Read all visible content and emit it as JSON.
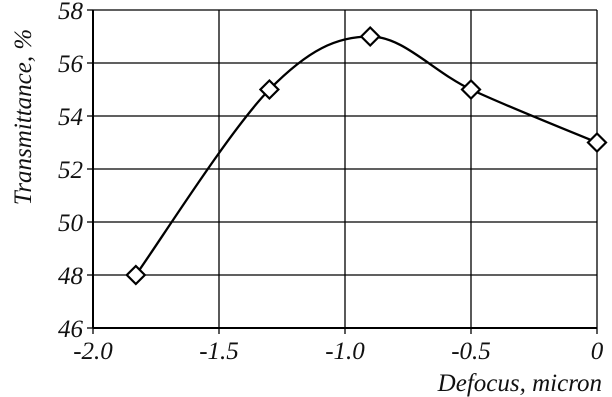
{
  "chart_data": {
    "type": "line",
    "title": "",
    "xlabel": "Defocus, micron",
    "ylabel": "Transmittance, %",
    "xlim": [
      -2.0,
      0
    ],
    "ylim": [
      46,
      58
    ],
    "x_ticks": [
      -2.0,
      -1.5,
      -1.0,
      -0.5,
      0
    ],
    "x_tick_labels": [
      "-2.0",
      "-1.5",
      "-1.0",
      "-0.5",
      "0"
    ],
    "y_ticks": [
      46,
      48,
      50,
      52,
      54,
      56,
      58
    ],
    "y_tick_labels": [
      "46",
      "48",
      "50",
      "52",
      "54",
      "56",
      "58"
    ],
    "grid": true,
    "marker": "diamond",
    "smooth": true,
    "line_color": "#000000",
    "series": [
      {
        "x": [
          -1.83,
          -1.3,
          -0.9,
          -0.5,
          0.0
        ],
        "y": [
          48,
          55,
          57,
          55,
          53
        ]
      }
    ]
  }
}
